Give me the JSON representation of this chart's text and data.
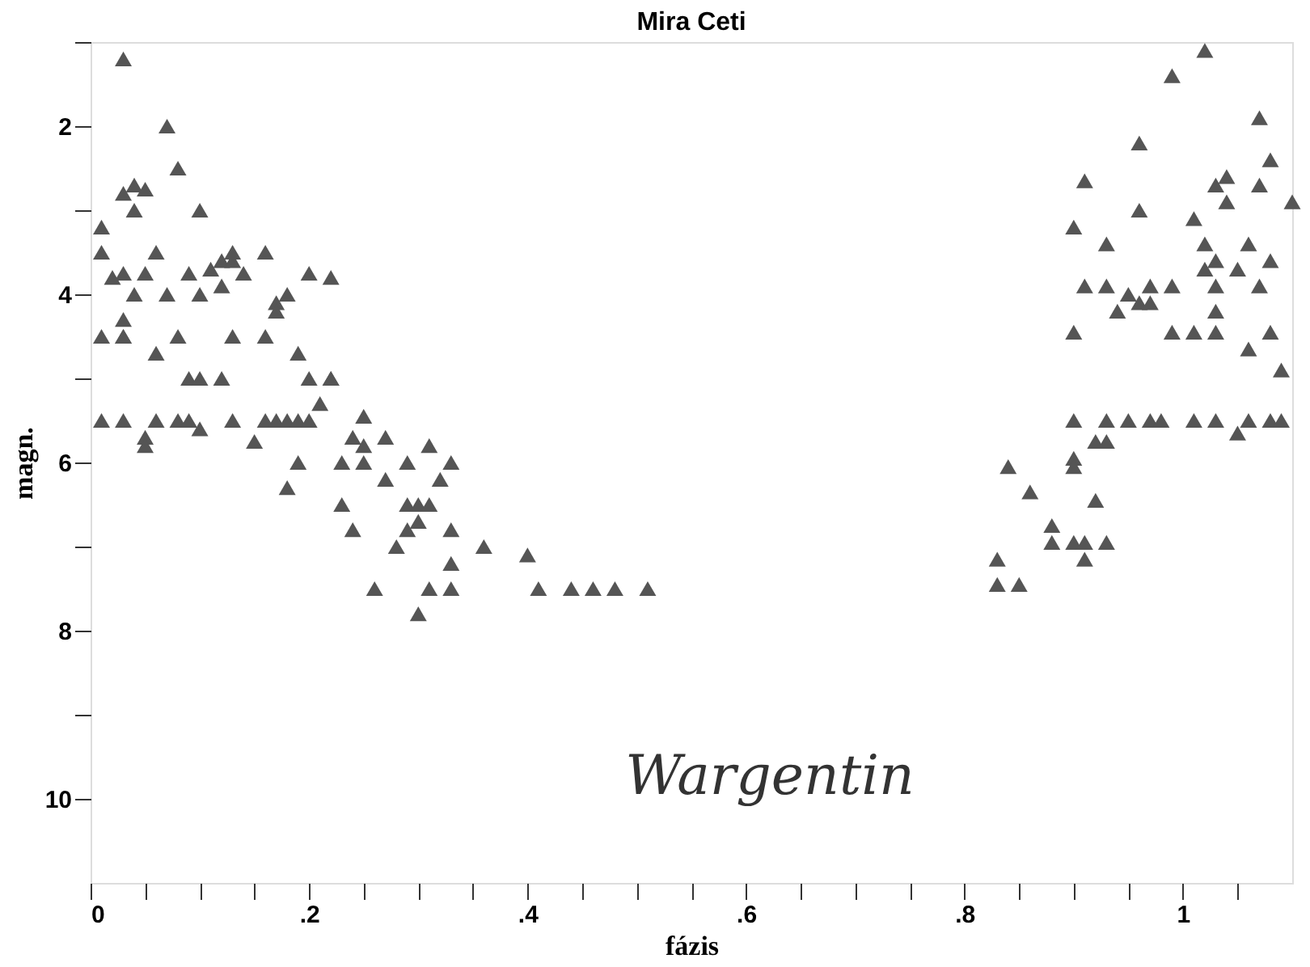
{
  "chart_data": {
    "type": "scatter",
    "title": "Mira Ceti",
    "xlabel": "fázis",
    "ylabel": "magn.",
    "annotations": [
      "Wargentin"
    ],
    "marker": "triangle",
    "grid": false,
    "legend": false,
    "xlim": [
      0,
      1.1
    ],
    "ylim": [
      11,
      1
    ],
    "xticks": [
      {
        "value": 0,
        "label": "0"
      },
      {
        "value": 0.05,
        "label": null
      },
      {
        "value": 0.1,
        "label": null
      },
      {
        "value": 0.15,
        "label": null
      },
      {
        "value": 0.2,
        "label": ".2"
      },
      {
        "value": 0.25,
        "label": null
      },
      {
        "value": 0.3,
        "label": null
      },
      {
        "value": 0.35,
        "label": null
      },
      {
        "value": 0.4,
        "label": ".4"
      },
      {
        "value": 0.45,
        "label": null
      },
      {
        "value": 0.5,
        "label": null
      },
      {
        "value": 0.55,
        "label": null
      },
      {
        "value": 0.6,
        "label": ".6"
      },
      {
        "value": 0.65,
        "label": null
      },
      {
        "value": 0.7,
        "label": null
      },
      {
        "value": 0.75,
        "label": null
      },
      {
        "value": 0.8,
        "label": ".8"
      },
      {
        "value": 0.85,
        "label": null
      },
      {
        "value": 0.9,
        "label": null
      },
      {
        "value": 0.95,
        "label": null
      },
      {
        "value": 1,
        "label": "1"
      },
      {
        "value": 1.05,
        "label": null
      }
    ],
    "yticks": [
      {
        "value": 1,
        "label": null
      },
      2,
      {
        "value": 3,
        "label": null
      },
      4,
      {
        "value": 5,
        "label": null
      },
      6,
      {
        "value": 7,
        "label": null
      },
      8,
      {
        "value": 9,
        "label": null
      },
      10
    ],
    "series": [
      {
        "color": "#555555",
        "x": [
          0.03,
          0.07,
          0.08,
          0.04,
          0.05,
          0.03,
          0.04,
          0.1,
          0.01,
          0.01,
          0.03,
          0.02,
          0.06,
          0.05,
          0.09,
          0.11,
          0.12,
          0.13,
          0.13,
          0.16,
          0.14,
          0.2,
          0.22,
          0.04,
          0.07,
          0.1,
          0.12,
          0.18,
          0.17,
          0.17,
          0.03,
          0.01,
          0.03,
          0.03,
          0.08,
          0.13,
          0.16,
          0.06,
          0.19,
          0.09,
          0.1,
          0.12,
          0.2,
          0.22,
          0.22,
          0.01,
          0.03,
          0.06,
          0.08,
          0.09,
          0.1,
          0.13,
          0.16,
          0.17,
          0.18,
          0.19,
          0.2,
          0.05,
          0.05,
          0.15,
          0.19,
          0.18,
          0.24,
          0.21,
          0.25,
          0.27,
          0.25,
          0.31,
          0.23,
          0.25,
          0.29,
          0.33,
          0.27,
          0.32,
          0.23,
          0.29,
          0.3,
          0.31,
          0.24,
          0.3,
          0.29,
          0.33,
          0.28,
          0.36,
          0.4,
          0.33,
          0.26,
          0.31,
          0.33,
          0.41,
          0.44,
          0.46,
          0.48,
          0.51,
          0.3,
          1.02,
          0.99,
          1.07,
          0.96,
          1.08,
          0.91,
          1.04,
          1.03,
          1.07,
          1.04,
          0.96,
          1.1,
          0.9,
          1.01,
          0.93,
          1.02,
          1.06,
          1.03,
          1.08,
          1.02,
          1.05,
          0.91,
          0.93,
          0.97,
          0.99,
          1.03,
          1.07,
          0.95,
          0.96,
          0.97,
          0.94,
          1.03,
          0.9,
          0.99,
          1.01,
          1.03,
          1.08,
          1.06,
          1.09,
          0.9,
          0.93,
          0.95,
          0.97,
          0.98,
          1.01,
          1.03,
          1.06,
          1.08,
          1.09,
          1.05,
          0.92,
          0.93,
          0.9,
          0.9,
          0.84,
          0.86,
          0.92,
          0.88,
          0.88,
          0.9,
          0.91,
          0.93,
          0.91,
          0.83,
          0.83,
          0.85
        ],
        "values": [
          1.2,
          2.0,
          2.5,
          2.7,
          2.75,
          2.8,
          3.0,
          3.0,
          3.2,
          3.5,
          3.75,
          3.8,
          3.5,
          3.75,
          3.75,
          3.7,
          3.6,
          3.6,
          3.5,
          3.5,
          3.75,
          3.75,
          3.8,
          4.0,
          4.0,
          4.0,
          3.9,
          4.0,
          4.1,
          4.2,
          4.3,
          4.5,
          4.5,
          4.5,
          4.5,
          4.5,
          4.5,
          4.7,
          4.7,
          5.0,
          5.0,
          5.0,
          5.0,
          5.0,
          5.0,
          5.5,
          5.5,
          5.5,
          5.5,
          5.5,
          5.6,
          5.5,
          5.5,
          5.5,
          5.5,
          5.5,
          5.5,
          5.7,
          5.8,
          5.75,
          6.0,
          6.3,
          5.7,
          5.3,
          5.45,
          5.7,
          5.8,
          5.8,
          6.0,
          6.0,
          6.0,
          6.0,
          6.2,
          6.2,
          6.5,
          6.5,
          6.5,
          6.5,
          6.8,
          6.7,
          6.8,
          6.8,
          7.0,
          7.0,
          7.1,
          7.2,
          7.5,
          7.5,
          7.5,
          7.5,
          7.5,
          7.5,
          7.5,
          7.5,
          7.8,
          1.1,
          1.4,
          1.9,
          2.2,
          2.4,
          2.65,
          2.6,
          2.7,
          2.7,
          2.9,
          3.0,
          2.9,
          3.2,
          3.1,
          3.4,
          3.4,
          3.4,
          3.6,
          3.6,
          3.7,
          3.7,
          3.9,
          3.9,
          3.9,
          3.9,
          3.9,
          3.9,
          4.0,
          4.1,
          4.1,
          4.2,
          4.2,
          4.45,
          4.45,
          4.45,
          4.45,
          4.45,
          4.65,
          4.9,
          5.5,
          5.5,
          5.5,
          5.5,
          5.5,
          5.5,
          5.5,
          5.5,
          5.5,
          5.5,
          5.65,
          5.75,
          5.75,
          5.95,
          6.05,
          6.05,
          6.35,
          6.45,
          6.75,
          6.95,
          6.95,
          6.95,
          6.95,
          7.15,
          7.15,
          7.45,
          7.45
        ]
      }
    ]
  }
}
